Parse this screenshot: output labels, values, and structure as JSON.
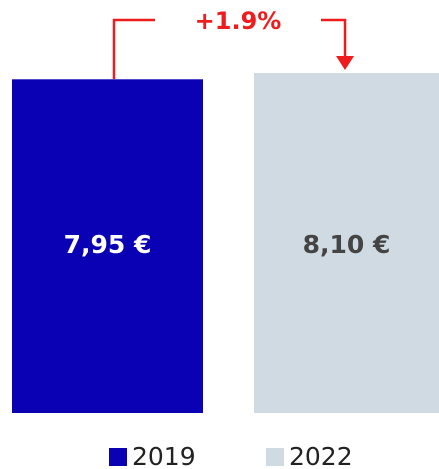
{
  "chart_data": {
    "type": "bar",
    "annotation": "+1.9%",
    "categories": [
      null
    ],
    "series": [
      {
        "name": "2019",
        "color": "#0a00b4",
        "values": [
          7.95
        ],
        "value_labels": [
          "7,95 €"
        ]
      },
      {
        "name": "2022",
        "color": "#d0dae3",
        "values": [
          8.1
        ],
        "value_labels": [
          "8,10 €"
        ]
      }
    ],
    "ylim": [
      0,
      8.1
    ]
  }
}
